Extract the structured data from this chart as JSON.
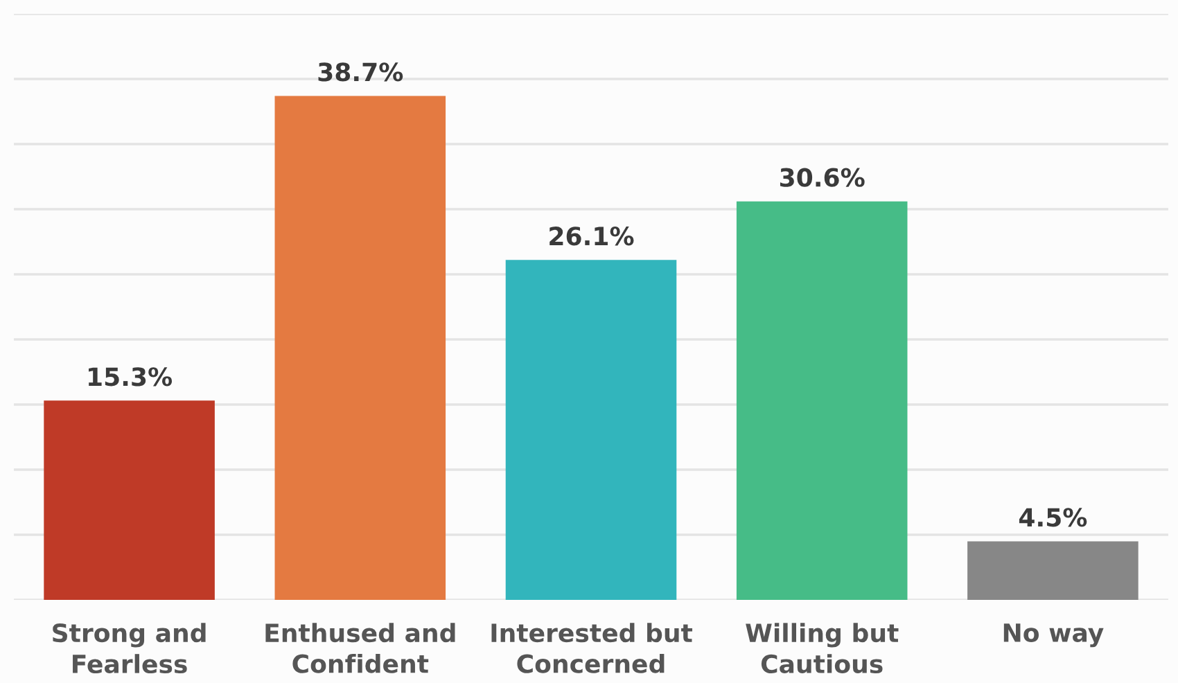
{
  "chart_data": {
    "type": "bar",
    "categories": [
      "Strong and\nFearless",
      "Enthused and\nConfident",
      "Interested but\nConcerned",
      "Willing but\nCautious",
      "No way"
    ],
    "values": [
      15.3,
      38.7,
      26.1,
      30.6,
      4.5
    ],
    "value_labels": [
      "15.3%",
      "38.7%",
      "26.1%",
      "30.6%",
      "4.5%"
    ],
    "colors": [
      "#bf3a27",
      "#e47a41",
      "#32b5bc",
      "#46bc87",
      "#878787"
    ],
    "ylim": [
      0,
      45
    ],
    "yticks": [
      {
        "value": 0,
        "label": null
      },
      {
        "value": 5,
        "label": null
      },
      {
        "value": 10,
        "label": null
      },
      {
        "value": 15,
        "label": null
      },
      {
        "value": 20,
        "label": null
      },
      {
        "value": 25,
        "label": null
      },
      {
        "value": 30,
        "label": null
      },
      {
        "value": 35,
        "label": null
      },
      {
        "value": 40,
        "label": null
      },
      {
        "value": 45,
        "label": null
      }
    ],
    "tick_labels": "x",
    "grid": "y",
    "legend": false
  }
}
